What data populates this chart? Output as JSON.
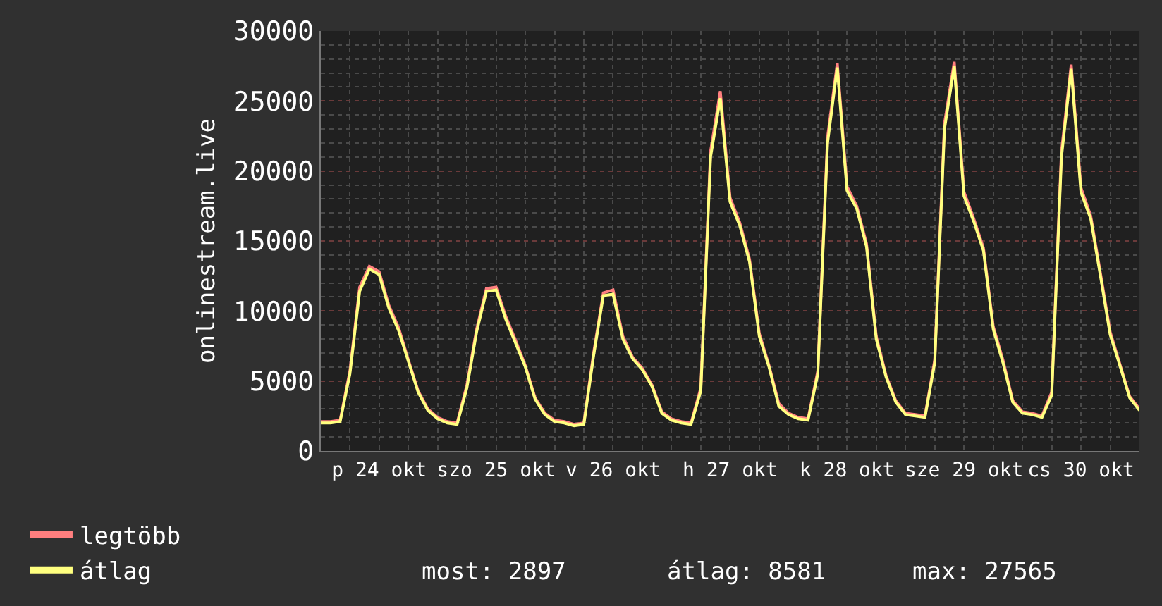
{
  "chart_data": {
    "type": "line",
    "ylabel": "onlinestream.live",
    "categories": [
      null,
      null,
      null,
      null,
      null,
      null,
      "p 24 okt",
      null,
      null,
      null,
      null,
      null,
      null,
      null,
      null,
      null,
      null,
      null,
      "szo 25 okt",
      null,
      null,
      null,
      null,
      null,
      null,
      null,
      null,
      null,
      null,
      null,
      "v 26 okt",
      null,
      null,
      null,
      null,
      null,
      null,
      null,
      null,
      null,
      null,
      null,
      "h 27 okt",
      null,
      null,
      null,
      null,
      null,
      null,
      null,
      null,
      null,
      null,
      null,
      "k 28 okt",
      null,
      null,
      null,
      null,
      null,
      null,
      null,
      null,
      null,
      null,
      null,
      "sze 29 okt",
      null,
      null,
      null,
      null,
      null,
      null,
      null,
      null,
      null,
      null,
      null,
      "cs 30 okt",
      null,
      null,
      null,
      null,
      null,
      null
    ],
    "series": [
      {
        "name": "legtöbb",
        "color": "#ff7f7f",
        "values": [
          2100,
          2100,
          2200,
          5700,
          11700,
          13200,
          12800,
          10400,
          8800,
          6500,
          4300,
          3000,
          2400,
          2100,
          2000,
          4700,
          8700,
          11600,
          11700,
          9600,
          7900,
          6100,
          3800,
          2700,
          2200,
          2100,
          1900,
          2000,
          7000,
          11300,
          11500,
          8200,
          6700,
          5900,
          4700,
          2800,
          2300,
          2100,
          2000,
          4500,
          21400,
          25700,
          18100,
          16300,
          13700,
          8400,
          6100,
          3400,
          2700,
          2400,
          2300,
          5700,
          22400,
          27700,
          18900,
          17500,
          14800,
          8200,
          5400,
          3600,
          2700,
          2600,
          2500,
          6500,
          23400,
          27800,
          18500,
          16600,
          14500,
          8900,
          6500,
          3600,
          2800,
          2700,
          2500,
          4200,
          21400,
          27600,
          18800,
          16800,
          12700,
          8500,
          6200,
          3900,
          3000
        ]
      },
      {
        "name": "átlag",
        "color": "#ffff7f",
        "values": [
          2000,
          2000,
          2100,
          5500,
          11400,
          13000,
          12600,
          10200,
          8600,
          6400,
          4200,
          2900,
          2300,
          2000,
          1900,
          4500,
          8500,
          11400,
          11500,
          9400,
          7700,
          6000,
          3700,
          2600,
          2100,
          2000,
          1800,
          1900,
          6800,
          11100,
          11200,
          8000,
          6600,
          5800,
          4600,
          2700,
          2200,
          2000,
          1900,
          4300,
          21000,
          25200,
          17800,
          16100,
          13500,
          8200,
          6000,
          3200,
          2600,
          2300,
          2200,
          5500,
          22000,
          27400,
          18600,
          17300,
          14600,
          8000,
          5300,
          3500,
          2600,
          2500,
          2400,
          6300,
          23000,
          27500,
          18200,
          16400,
          14300,
          8700,
          6300,
          3500,
          2700,
          2600,
          2400,
          4000,
          21000,
          27300,
          18500,
          16600,
          12500,
          8300,
          6100,
          3800,
          2900
        ]
      }
    ],
    "ylim": [
      0,
      30000
    ],
    "yticks": [
      0,
      5000,
      10000,
      15000,
      20000,
      25000,
      30000
    ],
    "grid": true,
    "legend": "bottom left",
    "marker": "none",
    "line_style": "solid",
    "annotations": [
      "most: 2897",
      "átlag: 8581",
      "max: 27565"
    ]
  }
}
